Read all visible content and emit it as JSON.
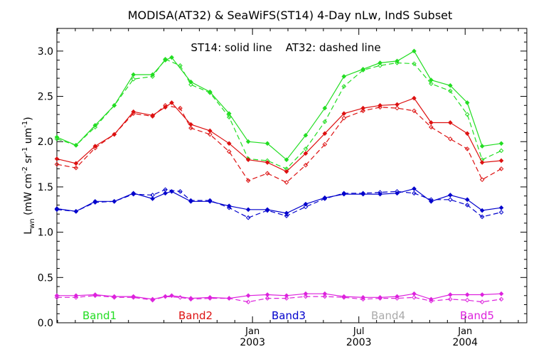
{
  "chart_data": {
    "type": "line",
    "title": "MODISA(AT32) & SeaWiFS(ST14) 4-Day nLw, IndS Subset",
    "annotation": "ST14: solid line    AT32: dashed line",
    "ylabel": "Lᵥₙ (mW cm⁻² sr⁻¹ um⁻¹)",
    "ylabel_parts": {
      "main": "L",
      "sub": "wn",
      "unit_open": " (mW cm",
      "exp1": "-2",
      "mid1": " sr",
      "exp2": "-1",
      "mid2": " um",
      "exp3": "-1",
      "unit_close": ")"
    },
    "ylim": [
      0.0,
      3.25
    ],
    "xlim": [
      2002.08,
      2004.29
    ],
    "yticks": [
      {
        "v": 0.0,
        "label": "0.0"
      },
      {
        "v": 0.5,
        "label": "0.5"
      },
      {
        "v": 1.0,
        "label": "1.0"
      },
      {
        "v": 1.5,
        "label": "1.5"
      },
      {
        "v": 2.0,
        "label": "2.0"
      },
      {
        "v": 2.5,
        "label": "2.5"
      },
      {
        "v": 3.0,
        "label": "3.0"
      }
    ],
    "xticks": [
      {
        "v": 2003.0,
        "month": "Jan",
        "year": "2003"
      },
      {
        "v": 2003.5,
        "month": "Jul",
        "year": "2003"
      },
      {
        "v": 2004.0,
        "month": "Jan",
        "year": "2004"
      },
      {
        "v": 2004.5,
        "month": "Jul",
        "year": "2004"
      }
    ],
    "legend": [
      {
        "label": "Band1",
        "color": "#22dd22"
      },
      {
        "label": "Band2",
        "color": "#dd1111"
      },
      {
        "label": "Band3",
        "color": "#0000cc"
      },
      {
        "label": "Band4",
        "color": "#aaaaaa"
      },
      {
        "label": "Band5",
        "color": "#dd22dd"
      }
    ],
    "series": [
      {
        "name": "Band1",
        "sensor": "ST14",
        "style": "solid",
        "color": "#22dd22",
        "points": [
          [
            2002.08,
            2.05
          ],
          [
            2002.17,
            1.96
          ],
          [
            2002.26,
            2.18
          ],
          [
            2002.35,
            2.4
          ],
          [
            2002.44,
            2.74
          ],
          [
            2002.53,
            2.74
          ],
          [
            2002.59,
            2.9
          ],
          [
            2002.62,
            2.93
          ],
          [
            2002.71,
            2.66
          ],
          [
            2002.8,
            2.55
          ],
          [
            2002.89,
            2.31
          ],
          [
            2002.98,
            2.0
          ],
          [
            2003.07,
            1.98
          ],
          [
            2003.16,
            1.8
          ],
          [
            2003.25,
            2.07
          ],
          [
            2003.34,
            2.37
          ],
          [
            2003.43,
            2.72
          ],
          [
            2003.52,
            2.8
          ],
          [
            2003.6,
            2.87
          ],
          [
            2003.68,
            2.89
          ],
          [
            2003.76,
            3.0
          ],
          [
            2003.84,
            2.68
          ],
          [
            2003.93,
            2.62
          ],
          [
            2004.01,
            2.43
          ],
          [
            2004.08,
            1.95
          ],
          [
            2004.17,
            1.98
          ]
        ]
      },
      {
        "name": "Band1",
        "sensor": "AT32",
        "style": "dashed",
        "color": "#22dd22",
        "points": [
          [
            2002.08,
            2.03
          ],
          [
            2002.17,
            1.96
          ],
          [
            2002.26,
            2.16
          ],
          [
            2002.35,
            2.4
          ],
          [
            2002.44,
            2.69
          ],
          [
            2002.53,
            2.72
          ],
          [
            2002.59,
            2.91
          ],
          [
            2002.66,
            2.84
          ],
          [
            2002.71,
            2.63
          ],
          [
            2002.8,
            2.54
          ],
          [
            2002.89,
            2.27
          ],
          [
            2002.98,
            1.81
          ],
          [
            2003.07,
            1.79
          ],
          [
            2003.16,
            1.7
          ],
          [
            2003.25,
            1.92
          ],
          [
            2003.34,
            2.22
          ],
          [
            2003.43,
            2.61
          ],
          [
            2003.52,
            2.79
          ],
          [
            2003.6,
            2.84
          ],
          [
            2003.68,
            2.87
          ],
          [
            2003.76,
            2.86
          ],
          [
            2003.84,
            2.64
          ],
          [
            2003.93,
            2.56
          ],
          [
            2004.01,
            2.3
          ],
          [
            2004.08,
            1.8
          ],
          [
            2004.17,
            1.9
          ]
        ]
      },
      {
        "name": "Band2",
        "sensor": "ST14",
        "style": "solid",
        "color": "#dd1111",
        "points": [
          [
            2002.08,
            1.81
          ],
          [
            2002.17,
            1.76
          ],
          [
            2002.26,
            1.95
          ],
          [
            2002.35,
            2.08
          ],
          [
            2002.44,
            2.33
          ],
          [
            2002.53,
            2.29
          ],
          [
            2002.59,
            2.38
          ],
          [
            2002.62,
            2.43
          ],
          [
            2002.71,
            2.19
          ],
          [
            2002.8,
            2.12
          ],
          [
            2002.89,
            1.98
          ],
          [
            2002.98,
            1.8
          ],
          [
            2003.07,
            1.77
          ],
          [
            2003.16,
            1.67
          ],
          [
            2003.25,
            1.87
          ],
          [
            2003.34,
            2.09
          ],
          [
            2003.43,
            2.31
          ],
          [
            2003.52,
            2.37
          ],
          [
            2003.6,
            2.4
          ],
          [
            2003.68,
            2.41
          ],
          [
            2003.76,
            2.48
          ],
          [
            2003.84,
            2.21
          ],
          [
            2003.93,
            2.21
          ],
          [
            2004.01,
            2.09
          ],
          [
            2004.08,
            1.77
          ],
          [
            2004.17,
            1.79
          ]
        ]
      },
      {
        "name": "Band2",
        "sensor": "AT32",
        "style": "dashed",
        "color": "#dd1111",
        "points": [
          [
            2002.08,
            1.75
          ],
          [
            2002.17,
            1.71
          ],
          [
            2002.26,
            1.93
          ],
          [
            2002.35,
            2.08
          ],
          [
            2002.44,
            2.31
          ],
          [
            2002.53,
            2.28
          ],
          [
            2002.59,
            2.4
          ],
          [
            2002.66,
            2.37
          ],
          [
            2002.71,
            2.15
          ],
          [
            2002.8,
            2.08
          ],
          [
            2002.89,
            1.89
          ],
          [
            2002.98,
            1.57
          ],
          [
            2003.07,
            1.65
          ],
          [
            2003.16,
            1.55
          ],
          [
            2003.25,
            1.74
          ],
          [
            2003.34,
            1.97
          ],
          [
            2003.43,
            2.26
          ],
          [
            2003.52,
            2.34
          ],
          [
            2003.6,
            2.38
          ],
          [
            2003.68,
            2.37
          ],
          [
            2003.76,
            2.34
          ],
          [
            2003.84,
            2.16
          ],
          [
            2003.93,
            2.03
          ],
          [
            2004.01,
            1.92
          ],
          [
            2004.08,
            1.58
          ],
          [
            2004.17,
            1.7
          ]
        ]
      },
      {
        "name": "Band3",
        "sensor": "ST14",
        "style": "solid",
        "color": "#0000cc",
        "points": [
          [
            2002.08,
            1.26
          ],
          [
            2002.17,
            1.23
          ],
          [
            2002.26,
            1.34
          ],
          [
            2002.35,
            1.34
          ],
          [
            2002.44,
            1.43
          ],
          [
            2002.53,
            1.37
          ],
          [
            2002.59,
            1.43
          ],
          [
            2002.62,
            1.45
          ],
          [
            2002.71,
            1.34
          ],
          [
            2002.8,
            1.34
          ],
          [
            2002.89,
            1.29
          ],
          [
            2002.98,
            1.25
          ],
          [
            2003.07,
            1.25
          ],
          [
            2003.16,
            1.21
          ],
          [
            2003.25,
            1.31
          ],
          [
            2003.34,
            1.38
          ],
          [
            2003.43,
            1.42
          ],
          [
            2003.52,
            1.42
          ],
          [
            2003.6,
            1.42
          ],
          [
            2003.68,
            1.43
          ],
          [
            2003.76,
            1.48
          ],
          [
            2003.84,
            1.34
          ],
          [
            2003.93,
            1.41
          ],
          [
            2004.01,
            1.36
          ],
          [
            2004.08,
            1.24
          ],
          [
            2004.17,
            1.27
          ]
        ]
      },
      {
        "name": "Band3",
        "sensor": "AT32",
        "style": "dashed",
        "color": "#0000cc",
        "points": [
          [
            2002.08,
            1.25
          ],
          [
            2002.17,
            1.23
          ],
          [
            2002.26,
            1.33
          ],
          [
            2002.35,
            1.34
          ],
          [
            2002.44,
            1.42
          ],
          [
            2002.53,
            1.41
          ],
          [
            2002.59,
            1.47
          ],
          [
            2002.66,
            1.45
          ],
          [
            2002.71,
            1.35
          ],
          [
            2002.8,
            1.35
          ],
          [
            2002.89,
            1.27
          ],
          [
            2002.98,
            1.16
          ],
          [
            2003.07,
            1.24
          ],
          [
            2003.16,
            1.18
          ],
          [
            2003.25,
            1.28
          ],
          [
            2003.34,
            1.37
          ],
          [
            2003.43,
            1.43
          ],
          [
            2003.52,
            1.43
          ],
          [
            2003.6,
            1.44
          ],
          [
            2003.68,
            1.45
          ],
          [
            2003.76,
            1.43
          ],
          [
            2003.84,
            1.36
          ],
          [
            2003.93,
            1.36
          ],
          [
            2004.01,
            1.3
          ],
          [
            2004.08,
            1.17
          ],
          [
            2004.17,
            1.22
          ]
        ]
      },
      {
        "name": "Band5",
        "sensor": "ST14",
        "style": "solid",
        "color": "#dd22dd",
        "points": [
          [
            2002.08,
            0.3
          ],
          [
            2002.17,
            0.3
          ],
          [
            2002.26,
            0.31
          ],
          [
            2002.35,
            0.29
          ],
          [
            2002.44,
            0.29
          ],
          [
            2002.53,
            0.26
          ],
          [
            2002.59,
            0.29
          ],
          [
            2002.62,
            0.3
          ],
          [
            2002.71,
            0.27
          ],
          [
            2002.8,
            0.28
          ],
          [
            2002.89,
            0.27
          ],
          [
            2002.98,
            0.3
          ],
          [
            2003.07,
            0.31
          ],
          [
            2003.16,
            0.3
          ],
          [
            2003.25,
            0.32
          ],
          [
            2003.34,
            0.32
          ],
          [
            2003.43,
            0.29
          ],
          [
            2003.52,
            0.28
          ],
          [
            2003.6,
            0.28
          ],
          [
            2003.68,
            0.29
          ],
          [
            2003.76,
            0.32
          ],
          [
            2003.84,
            0.26
          ],
          [
            2003.93,
            0.31
          ],
          [
            2004.01,
            0.31
          ],
          [
            2004.08,
            0.31
          ],
          [
            2004.17,
            0.32
          ]
        ]
      },
      {
        "name": "Band5",
        "sensor": "AT32",
        "style": "dashed",
        "color": "#dd22dd",
        "points": [
          [
            2002.08,
            0.28
          ],
          [
            2002.17,
            0.28
          ],
          [
            2002.26,
            0.3
          ],
          [
            2002.35,
            0.28
          ],
          [
            2002.44,
            0.28
          ],
          [
            2002.53,
            0.25
          ],
          [
            2002.59,
            0.29
          ],
          [
            2002.66,
            0.28
          ],
          [
            2002.71,
            0.26
          ],
          [
            2002.8,
            0.27
          ],
          [
            2002.89,
            0.27
          ],
          [
            2002.98,
            0.23
          ],
          [
            2003.07,
            0.27
          ],
          [
            2003.16,
            0.27
          ],
          [
            2003.25,
            0.29
          ],
          [
            2003.34,
            0.29
          ],
          [
            2003.43,
            0.28
          ],
          [
            2003.52,
            0.26
          ],
          [
            2003.6,
            0.27
          ],
          [
            2003.68,
            0.27
          ],
          [
            2003.76,
            0.28
          ],
          [
            2003.84,
            0.24
          ],
          [
            2003.93,
            0.26
          ],
          [
            2004.01,
            0.25
          ],
          [
            2004.08,
            0.23
          ],
          [
            2004.17,
            0.26
          ]
        ]
      }
    ]
  }
}
